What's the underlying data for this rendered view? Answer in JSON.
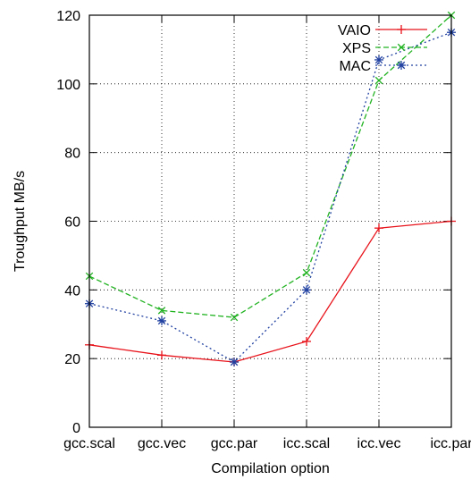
{
  "chart_data": {
    "type": "line",
    "title": "",
    "xlabel": "Compilation option",
    "ylabel": "Troughput MB/s",
    "categories": [
      "gcc.scal",
      "gcc.vec",
      "gcc.par",
      "icc.scal",
      "icc.vec",
      "icc.par"
    ],
    "ylim": [
      0,
      120
    ],
    "yticks": [
      0,
      20,
      40,
      60,
      80,
      100,
      120
    ],
    "grid": true,
    "legend_position": "top-right",
    "series": [
      {
        "name": "VAIO",
        "values": [
          24,
          21,
          19,
          25,
          58,
          60
        ],
        "color": "#e8131b",
        "marker": "plus",
        "dash": "solid"
      },
      {
        "name": "XPS",
        "values": [
          44,
          34,
          32,
          45,
          101,
          120
        ],
        "color": "#22b322",
        "marker": "x",
        "dash": "long"
      },
      {
        "name": "MAC",
        "values": [
          36,
          31,
          19,
          40,
          107,
          115
        ],
        "color": "#2040a0",
        "marker": "star",
        "dash": "dotted"
      }
    ]
  }
}
